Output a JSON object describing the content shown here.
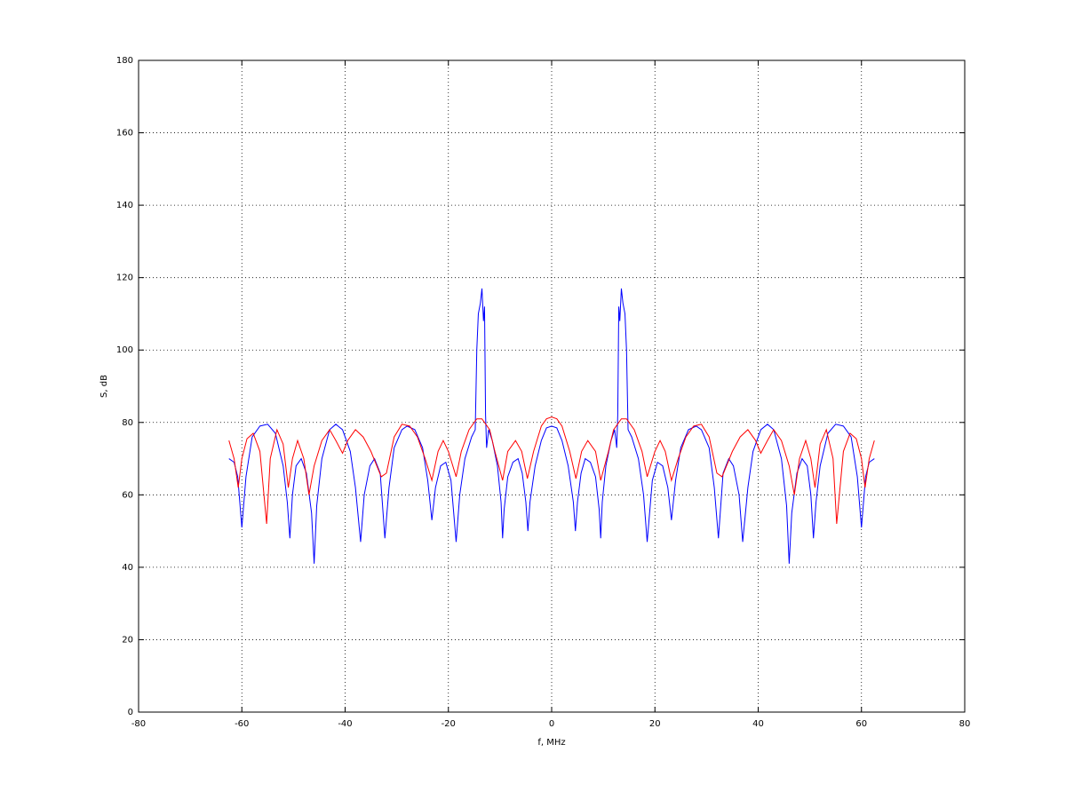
{
  "chart_data": {
    "type": "line",
    "xlabel": "f, MHz",
    "ylabel": "S, dB",
    "xlim": [
      -80,
      80
    ],
    "xticks": [
      -80,
      -60,
      -40,
      -20,
      0,
      20,
      40,
      60,
      80
    ],
    "ylim": [
      0,
      180
    ],
    "yticks": [
      0,
      20,
      40,
      60,
      80,
      100,
      120,
      140,
      160,
      180
    ],
    "grid": true,
    "series": [
      {
        "color": "#0000ff",
        "x": [
          -62.5,
          -61.5,
          -60.8,
          -60,
          -59.2,
          -58,
          -56.5,
          -55,
          -53.5,
          -52,
          -51.2,
          -50.7,
          -50.2,
          -49.5,
          -48.5,
          -47.5,
          -46.5,
          -46,
          -45.5,
          -44.5,
          -43,
          -41.8,
          -40.5,
          -39,
          -38,
          -37,
          -36.3,
          -35.2,
          -34.3,
          -33.2,
          -32.3,
          -31.5,
          -30.5,
          -29,
          -28,
          -26.5,
          -25,
          -24,
          -23.2,
          -22.5,
          -21.5,
          -20.5,
          -19.5,
          -18.5,
          -17.8,
          -16.8,
          -15.5,
          -14.8,
          -14.5,
          -14.2,
          -13.8,
          -13.5,
          -13.2,
          -13,
          -12.8,
          -12.6,
          -12.2,
          -11.5,
          -10.5,
          -9.8,
          -9.5,
          -9.2,
          -8.5,
          -7.5,
          -6.5,
          -5.7,
          -5,
          -4.6,
          -4.2,
          -3.2,
          -2,
          -1,
          0,
          1,
          2,
          3.2,
          4.2,
          4.6,
          5,
          5.7,
          6.5,
          7.5,
          8.5,
          9.2,
          9.5,
          9.8,
          10.5,
          11.5,
          12.2,
          12.6,
          12.8,
          13,
          13.2,
          13.5,
          13.8,
          14.2,
          14.5,
          14.8,
          15.5,
          16.8,
          17.8,
          18.5,
          19.5,
          20.5,
          21.5,
          22.5,
          23.2,
          24,
          25,
          26.5,
          28,
          29,
          30.5,
          31.5,
          32.3,
          33.2,
          34.3,
          35.2,
          36.3,
          37,
          38,
          39,
          40.5,
          41.8,
          43,
          44.5,
          45.5,
          46,
          46.5,
          47.5,
          48.5,
          49.5,
          50.2,
          50.7,
          51.2,
          52,
          53.5,
          55,
          56.5,
          58,
          59.2,
          60,
          60.8,
          61.5,
          62.5
        ],
        "values": [
          70,
          69,
          65,
          51,
          65,
          76,
          79,
          79.5,
          77,
          68,
          58,
          48,
          60,
          68,
          70,
          66,
          55,
          41,
          57,
          70,
          78,
          79.5,
          78,
          72,
          62,
          47,
          60,
          68,
          70,
          66,
          48,
          62,
          73,
          78,
          79,
          78,
          73,
          64,
          53,
          62,
          68,
          69,
          64,
          47,
          60,
          70,
          76,
          78,
          100,
          110,
          113,
          117,
          108,
          112,
          82,
          73,
          78,
          75,
          68,
          58,
          48,
          56,
          65,
          69,
          70,
          66,
          58,
          50,
          58,
          68,
          75,
          78.5,
          79,
          78.5,
          75,
          68,
          58,
          50,
          58,
          66,
          70,
          69,
          65,
          56,
          48,
          58,
          68,
          75,
          78,
          73,
          82,
          112,
          108,
          117,
          113,
          110,
          100,
          78,
          76,
          70,
          60,
          47,
          64,
          69,
          68,
          62,
          53,
          64,
          73,
          78,
          79,
          78,
          73,
          62,
          48,
          66,
          70,
          68,
          60,
          47,
          62,
          72,
          78,
          79.5,
          78,
          70,
          57,
          41,
          55,
          66,
          70,
          68,
          60,
          48,
          58,
          68,
          77,
          79.5,
          79,
          76,
          65,
          51,
          65,
          69,
          70
        ]
      },
      {
        "color": "#ff0000",
        "x": [
          -62.5,
          -61.5,
          -60.7,
          -60,
          -59,
          -57.8,
          -56.5,
          -55.2,
          -54.5,
          -53.2,
          -52,
          -51,
          -50.2,
          -49.2,
          -48,
          -47,
          -46,
          -44.5,
          -43,
          -41.8,
          -40.5,
          -39.5,
          -38,
          -36.5,
          -35,
          -33,
          -32,
          -30.5,
          -29,
          -27.5,
          -26,
          -24.5,
          -23.2,
          -22,
          -21,
          -20,
          -18.5,
          -17.5,
          -16,
          -14.5,
          -13.5,
          -12,
          -11,
          -9.5,
          -8.5,
          -7,
          -5.8,
          -4.7,
          -3.5,
          -2,
          -1,
          0,
          1,
          2,
          3.5,
          4.7,
          5.8,
          7,
          8.5,
          9.5,
          11,
          12,
          13.5,
          14.5,
          16,
          17.5,
          18.5,
          20,
          21,
          22,
          23.2,
          24.5,
          26,
          27.5,
          29,
          30.5,
          32,
          33,
          35,
          36.5,
          38,
          39.5,
          40.5,
          41.8,
          43,
          44.5,
          46,
          47,
          48,
          49.2,
          50.2,
          51,
          52,
          53.2,
          54.5,
          55.2,
          56.5,
          57.8,
          59,
          60,
          60.7,
          61.5,
          62.5
        ],
        "values": [
          75,
          70,
          62,
          70,
          75.5,
          77,
          72,
          52,
          70,
          78,
          74,
          62,
          70,
          75,
          70,
          60,
          68,
          75,
          78,
          75,
          71.5,
          75,
          78,
          76,
          72,
          65,
          66,
          76,
          79.5,
          79,
          76,
          70,
          64,
          72,
          75,
          72,
          65,
          72,
          78,
          81,
          81,
          78,
          72,
          64,
          72,
          75,
          72,
          64.5,
          72,
          79,
          81,
          81.5,
          81,
          79,
          72,
          64.5,
          72,
          75,
          72,
          64,
          72,
          78,
          81,
          81,
          78,
          72,
          65,
          72,
          75,
          72,
          64,
          70,
          76,
          79,
          79.5,
          76,
          66,
          65,
          72,
          76,
          78,
          75,
          71.5,
          75,
          78,
          75,
          68,
          60,
          70,
          75,
          70,
          62,
          74,
          78,
          70,
          52,
          72,
          77,
          75.5,
          70,
          62,
          70,
          75
        ]
      }
    ]
  }
}
